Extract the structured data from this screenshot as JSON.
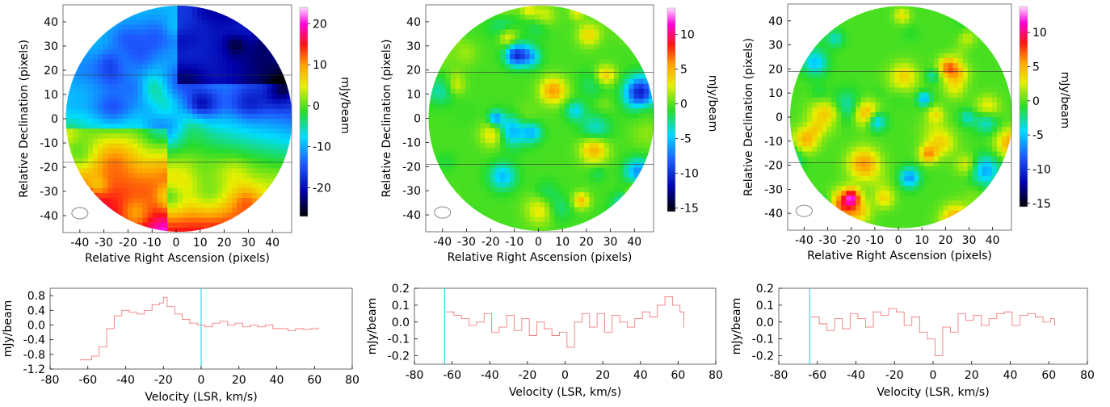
{
  "chart_data": [
    {
      "type": "heatmap",
      "xlabel": "Relative Right Ascension (pixels)",
      "ylabel": "Relative Declination (pixels)",
      "xlim": [
        -47,
        48
      ],
      "ylim": [
        -47,
        47
      ],
      "xticks": [
        -40,
        -30,
        -20,
        -10,
        0,
        10,
        20,
        30,
        40
      ],
      "yticks": [
        -40,
        -30,
        -20,
        -10,
        0,
        10,
        20,
        30,
        40
      ],
      "colorbar": {
        "label": "mJy/beam",
        "range": [
          -27,
          24
        ],
        "ticks": [
          -20,
          -10,
          0,
          10,
          20
        ]
      },
      "pattern": "gradient",
      "cuts": [
        18,
        -18
      ]
    },
    {
      "type": "heatmap",
      "xlabel": "Relative Right Ascension (pixels)",
      "ylabel": "Relative Declination (pixels)",
      "xlim": [
        -47,
        48
      ],
      "ylim": [
        -47,
        47
      ],
      "xticks": [
        -40,
        -30,
        -20,
        -10,
        0,
        10,
        20,
        30,
        40
      ],
      "yticks": [
        -40,
        -30,
        -20,
        -10,
        0,
        10,
        20,
        30,
        40
      ],
      "colorbar": {
        "label": "mJy/beam",
        "range": [
          -15.5,
          13.8
        ],
        "ticks": [
          -15,
          -10,
          -5,
          0,
          5,
          10
        ]
      },
      "pattern": "noise",
      "cuts": [
        19,
        -19
      ]
    },
    {
      "type": "heatmap",
      "xlabel": "Relative Right Ascension (pixels)",
      "ylabel": "Relative Declination (pixels)",
      "xlim": [
        -47,
        48
      ],
      "ylim": [
        -47,
        47
      ],
      "xticks": [
        -40,
        -30,
        -20,
        -10,
        0,
        10,
        20,
        30,
        40
      ],
      "yticks": [
        -40,
        -30,
        -20,
        -10,
        0,
        10,
        20,
        30,
        40
      ],
      "colorbar": {
        "label": "mJy/beam",
        "range": [
          -15.5,
          13.8
        ],
        "ticks": [
          -15,
          -10,
          -5,
          0,
          5,
          10
        ]
      },
      "pattern": "noise",
      "cuts": [
        19,
        -19
      ]
    },
    {
      "type": "line",
      "xlabel": "Velocity (LSR, km/s)",
      "ylabel": "mJy/beam",
      "xlim": [
        -80,
        80
      ],
      "ylim": [
        -1.2,
        1.0
      ],
      "xticks": [
        -80,
        -60,
        -40,
        -20,
        0,
        20,
        40,
        60,
        80
      ],
      "yticks": [
        -1.2,
        -0.8,
        -0.4,
        0.0,
        0.4,
        0.8
      ],
      "ytick_labels": [
        "-1.2",
        "-0.8",
        "-0.4",
        "0.0",
        "0.4",
        "0.8"
      ],
      "vline": 0,
      "x": [
        -64,
        -58,
        -54,
        -50,
        -46,
        -42,
        -38,
        -34,
        -30,
        -26,
        -22,
        -20,
        -18,
        -14,
        -10,
        -6,
        -2,
        2,
        6,
        10,
        14,
        18,
        22,
        26,
        30,
        34,
        38,
        42,
        46,
        50,
        54,
        58,
        62
      ],
      "y": [
        -0.95,
        -0.85,
        -0.6,
        -0.1,
        0.25,
        0.4,
        0.35,
        0.3,
        0.4,
        0.55,
        0.6,
        0.75,
        0.5,
        0.3,
        0.15,
        0.05,
        0.0,
        -0.05,
        0.05,
        0.1,
        0.0,
        0.05,
        -0.05,
        0.0,
        -0.05,
        0.0,
        -0.1,
        -0.1,
        -0.15,
        -0.1,
        -0.12,
        -0.1,
        -0.08
      ]
    },
    {
      "type": "line",
      "xlabel": "Velocity (LSR, km/s)",
      "ylabel": "mJy/beam",
      "xlim": [
        -80,
        80
      ],
      "ylim": [
        -0.25,
        0.2
      ],
      "xticks": [
        -80,
        -60,
        -40,
        -20,
        0,
        20,
        40,
        60,
        80
      ],
      "yticks": [
        -0.2,
        -0.1,
        0.0,
        0.1,
        0.2
      ],
      "ytick_labels": [
        "-0.2",
        "-0.1",
        "0.0",
        "0.1",
        "0.2"
      ],
      "vline": -64,
      "x": [
        -63,
        -59,
        -55,
        -51,
        -47,
        -43,
        -39,
        -35,
        -31,
        -27,
        -23,
        -19,
        -15,
        -11,
        -7,
        -3,
        1,
        5,
        9,
        13,
        17,
        21,
        25,
        29,
        33,
        37,
        41,
        45,
        49,
        53,
        57,
        61,
        63
      ],
      "y": [
        0.06,
        0.04,
        0.02,
        -0.02,
        0.0,
        0.05,
        -0.06,
        -0.03,
        0.04,
        -0.05,
        0.02,
        -0.08,
        0.0,
        -0.04,
        -0.08,
        -0.06,
        -0.15,
        0.0,
        0.05,
        -0.03,
        0.05,
        -0.06,
        0.04,
        0.0,
        -0.03,
        0.02,
        0.06,
        0.03,
        0.1,
        0.15,
        0.1,
        0.06,
        -0.03
      ]
    },
    {
      "type": "line",
      "xlabel": "Velocity (LSR, km/s)",
      "ylabel": "mJy/beam",
      "xlim": [
        -80,
        80
      ],
      "ylim": [
        -0.25,
        0.2
      ],
      "xticks": [
        -80,
        -60,
        -40,
        -20,
        0,
        20,
        40,
        60,
        80
      ],
      "yticks": [
        -0.2,
        -0.1,
        0.0,
        0.1,
        0.2
      ],
      "ytick_labels": [
        "-0.2",
        "-0.1",
        "0.0",
        "0.1",
        "0.2"
      ],
      "vline": -64,
      "x": [
        -63,
        -59,
        -55,
        -51,
        -47,
        -43,
        -39,
        -35,
        -31,
        -27,
        -23,
        -19,
        -15,
        -11,
        -7,
        -3,
        1,
        5,
        9,
        13,
        17,
        21,
        25,
        29,
        33,
        37,
        41,
        45,
        49,
        53,
        57,
        61,
        63
      ],
      "y": [
        0.03,
        -0.01,
        -0.05,
        0.02,
        -0.04,
        0.05,
        0.02,
        -0.03,
        0.06,
        0.04,
        0.08,
        0.06,
        -0.02,
        0.03,
        -0.06,
        -0.1,
        -0.2,
        -0.03,
        -0.06,
        0.05,
        0.01,
        0.04,
        -0.02,
        0.02,
        0.05,
        0.06,
        -0.02,
        0.04,
        0.05,
        0.03,
        0.0,
        0.02,
        -0.02
      ]
    }
  ]
}
